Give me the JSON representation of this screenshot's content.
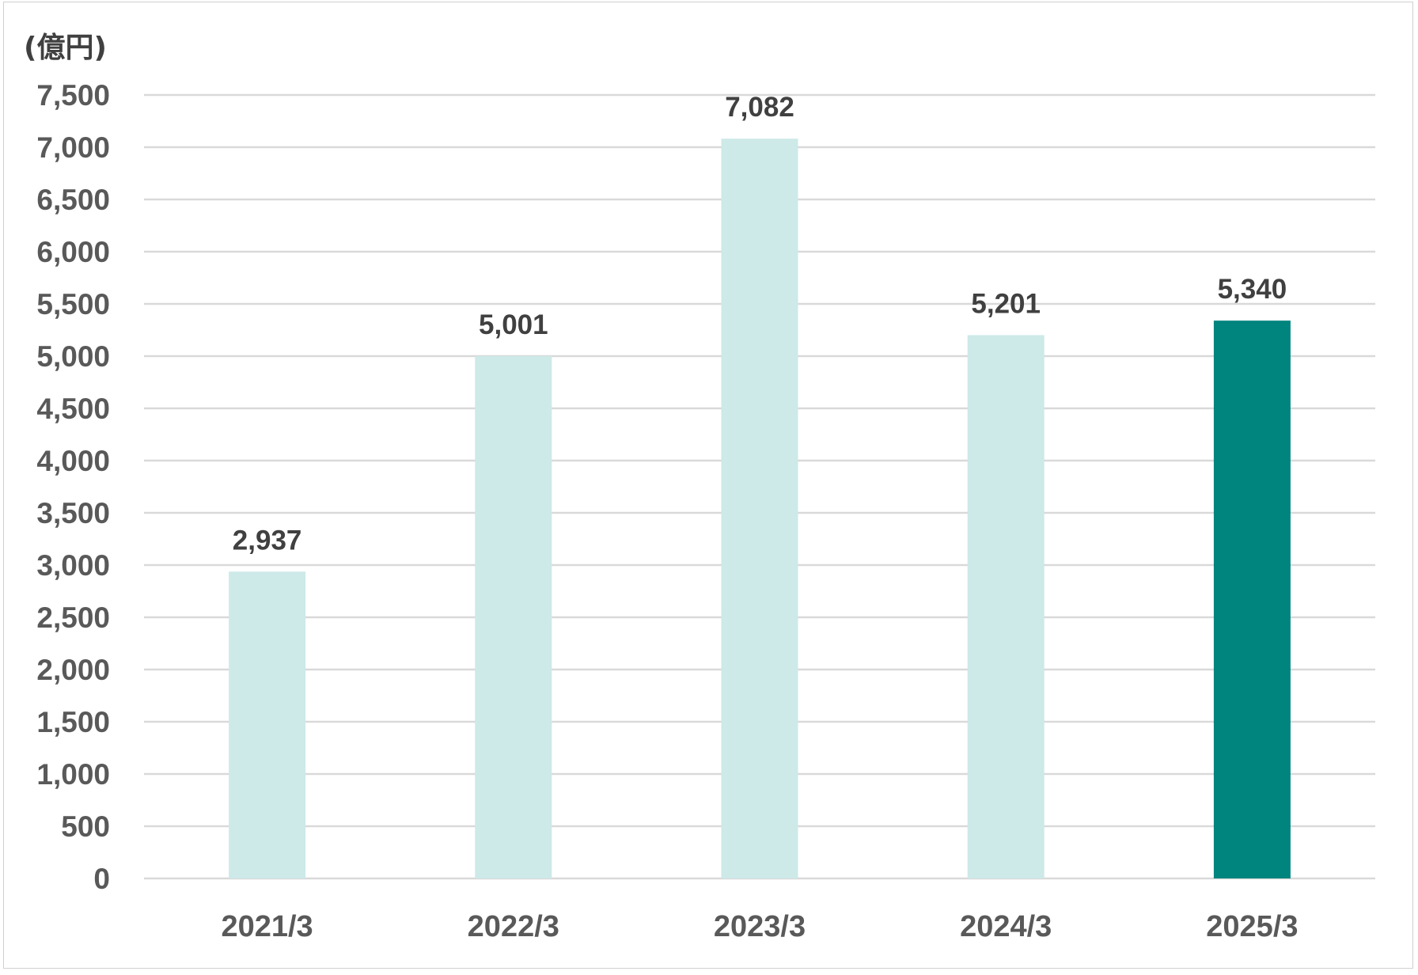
{
  "chart_data": {
    "type": "bar",
    "unit_label": "(億円)",
    "categories": [
      "2021/3",
      "2022/3",
      "2023/3",
      "2024/3",
      "2025/3"
    ],
    "values": [
      2937,
      5001,
      7082,
      5201,
      5340
    ],
    "data_labels": [
      "2,937",
      "5,001",
      "7,082",
      "5,201",
      "5,340"
    ],
    "y_ticks": [
      0,
      500,
      1000,
      1500,
      2000,
      2500,
      3000,
      3500,
      4000,
      4500,
      5000,
      5500,
      6000,
      6500,
      7000,
      7500
    ],
    "y_tick_labels": [
      "0",
      "500",
      "1,000",
      "1,500",
      "2,000",
      "2,500",
      "3,000",
      "3,500",
      "4,000",
      "4,500",
      "5,000",
      "5,500",
      "6,000",
      "6,500",
      "7,000",
      "7,500"
    ],
    "ylim": [
      0,
      7500
    ],
    "grid": true,
    "legend": "none",
    "colors": {
      "bar_default": "#cde9e8",
      "bar_highlight": "#00847e",
      "highlight_index": 4,
      "gridline": "#d9d9d9"
    }
  }
}
